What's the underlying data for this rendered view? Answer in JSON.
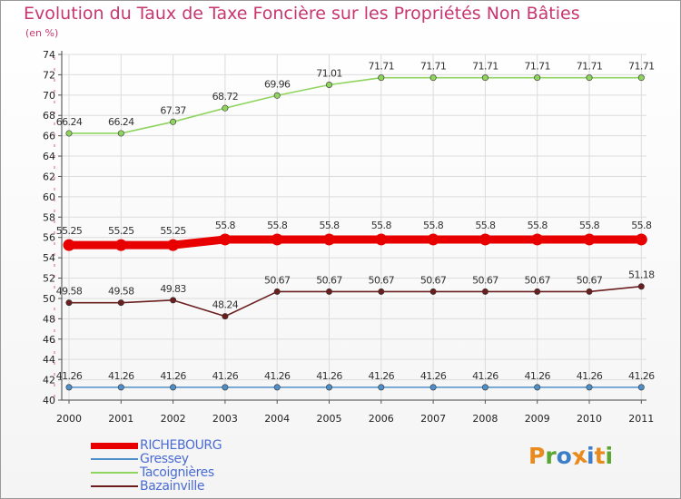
{
  "title": "Evolution du Taux de Taxe Foncière sur les Propriétés Non Bâties",
  "subtitle": "(en %)",
  "logo": {
    "letters": [
      "P",
      "r",
      "o",
      "x",
      "i",
      "t",
      "i"
    ],
    "colors": [
      "#e98a1e",
      "#5aa630",
      "#3d7ec9",
      "#e98a1e",
      "#3d7ec9",
      "#e98a1e",
      "#5aa630"
    ]
  },
  "chart_data": {
    "type": "line",
    "title": "Evolution du Taux de Taxe Foncière sur les Propriétés Non Bâties",
    "ylabel": "(en %)",
    "xlabel": "",
    "ylim": [
      40,
      74
    ],
    "yticks": [
      "40",
      "42",
      "44",
      "46",
      "48",
      "50",
      "52",
      "54",
      "56",
      "58",
      "60",
      "62",
      "64",
      "66",
      "68",
      "70",
      "72",
      "74"
    ],
    "categories": [
      "2000",
      "2001",
      "2002",
      "2003",
      "2004",
      "2005",
      "2006",
      "2007",
      "2008",
      "2009",
      "2010",
      "2011"
    ],
    "grid": true,
    "series": [
      {
        "name": "RICHEBOURG",
        "color": "#e80000",
        "values": [
          55.25,
          55.25,
          55.25,
          55.8,
          55.8,
          55.8,
          55.8,
          55.8,
          55.8,
          55.8,
          55.8,
          55.8
        ],
        "labels": [
          "55.25",
          "55.25",
          "55.25",
          "55.8",
          "55.8",
          "55.8",
          "55.8",
          "55.8",
          "55.8",
          "55.8",
          "55.8",
          "55.8"
        ]
      },
      {
        "name": "Gressey",
        "color": "#4f8fc9",
        "values": [
          41.26,
          41.26,
          41.26,
          41.26,
          41.26,
          41.26,
          41.26,
          41.26,
          41.26,
          41.26,
          41.26,
          41.26
        ],
        "labels": [
          "41.26",
          "41.26",
          "41.26",
          "41.26",
          "41.26",
          "41.26",
          "41.26",
          "41.26",
          "41.26",
          "41.26",
          "41.26",
          "41.26"
        ]
      },
      {
        "name": "Tacoignières",
        "color": "#8fd45e",
        "values": [
          66.24,
          66.24,
          67.37,
          68.72,
          69.96,
          71.01,
          71.71,
          71.71,
          71.71,
          71.71,
          71.71,
          71.71
        ],
        "labels": [
          "66.24",
          "66.24",
          "67.37",
          "68.72",
          "69.96",
          "71.01",
          "71.71",
          "71.71",
          "71.71",
          "71.71",
          "71.71",
          "71.71"
        ]
      },
      {
        "name": "Bazainville",
        "color": "#6b1e1e",
        "values": [
          49.58,
          49.58,
          49.83,
          48.24,
          50.67,
          50.67,
          50.67,
          50.67,
          50.67,
          50.67,
          50.67,
          51.18
        ],
        "labels": [
          "49.58",
          "49.58",
          "49.83",
          "48.24",
          "50.67",
          "50.67",
          "50.67",
          "50.67",
          "50.67",
          "50.67",
          "50.67",
          "51.18"
        ]
      }
    ]
  }
}
